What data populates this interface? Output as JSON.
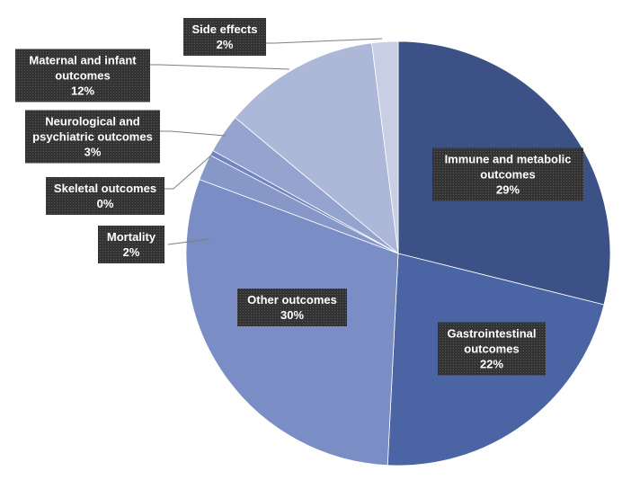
{
  "chart_data": {
    "type": "pie",
    "start_angle_deg": 0,
    "direction": "clockwise",
    "series": [
      {
        "values": [
          29,
          22,
          30,
          2,
          0.4,
          3,
          12,
          2
        ],
        "categories": [
          "Immune and metabolic outcomes",
          "Gastrointestinal outcomes",
          "Other outcomes",
          "Mortality",
          "Skeletal outcomes",
          "Neurological and psychiatric outcomes",
          "Maternal and infant outcomes",
          "Side effects"
        ]
      }
    ],
    "slices": [
      {
        "name": "Immune and metabolic outcomes",
        "lines": [
          "Immune and metabolic",
          "outcomes",
          "29%"
        ],
        "value": 29,
        "color": "#3c5185",
        "label_placement": "inside"
      },
      {
        "name": "Gastrointestinal outcomes",
        "lines": [
          "Gastrointestinal",
          "outcomes",
          "22%"
        ],
        "value": 22,
        "color": "#4a64a4",
        "label_placement": "inside"
      },
      {
        "name": "Other outcomes",
        "lines": [
          "Other outcomes",
          "30%"
        ],
        "value": 30,
        "color": "#7a8dc4",
        "label_placement": "inside"
      },
      {
        "name": "Mortality",
        "lines": [
          "Mortality",
          "2%"
        ],
        "value": 2,
        "color": "#8797c8",
        "label_placement": "outside"
      },
      {
        "name": "Skeletal outcomes",
        "lines": [
          "Skeletal outcomes",
          "0%"
        ],
        "value": 0.4,
        "color": "#6f84c0",
        "label_placement": "outside"
      },
      {
        "name": "Neurological and psychiatric outcomes",
        "lines": [
          "Neurological and",
          "psychiatric outcomes",
          "3%"
        ],
        "value": 3,
        "color": "#95a3cf",
        "label_placement": "outside"
      },
      {
        "name": "Maternal and infant outcomes",
        "lines": [
          "Maternal and infant",
          "outcomes",
          "12%"
        ],
        "value": 12,
        "color": "#adb8d8",
        "label_placement": "outside"
      },
      {
        "name": "Side effects",
        "lines": [
          "Side effects",
          "2%"
        ],
        "value": 2,
        "color": "#c8cfe5",
        "label_placement": "outside"
      }
    ]
  }
}
